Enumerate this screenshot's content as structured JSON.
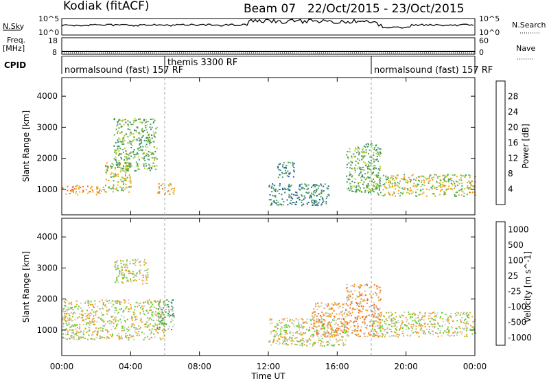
{
  "header": {
    "radar": "Kodiak (fitACF)",
    "beam": "Beam 07",
    "dates": "22/Oct/2015 - 23/Oct/2015"
  },
  "top_panels": {
    "nsky_label": "N.Sky",
    "nsky_ticks": [
      "10^5",
      "10^0"
    ],
    "nsearch_label": "N.Search",
    "nsearch_ticks": [
      "10^5",
      "10^0"
    ],
    "freq_label": "Freq.",
    "freq_unit": "[MHz]",
    "freq_ticks": [
      "18",
      "8"
    ],
    "nave_label": "Nave",
    "nave_ticks": [
      "60",
      "0"
    ],
    "cpid_label": "CPID",
    "cpid_modes": [
      {
        "text": "normalsound (fast) 157 RF",
        "start": 0
      },
      {
        "text": "themis 3300 RF",
        "start": 6
      },
      {
        "text": "normalsound (fast) 157 RF",
        "start": 18
      }
    ]
  },
  "chart_data": [
    {
      "type": "heatmap",
      "name": "Power",
      "xlabel": "Time UT",
      "ylabel": "Slant Range [km]",
      "xlim": [
        0,
        24
      ],
      "ylim": [
        180,
        4600
      ],
      "x_ticks": [
        "00:00",
        "04:00",
        "08:00",
        "12:00",
        "16:00",
        "20:00",
        "00:00"
      ],
      "y_ticks": [
        1000,
        2000,
        3000,
        4000
      ],
      "colorbar_label": "Power [dB]",
      "colorbar_ticks": [
        4,
        8,
        12,
        16,
        20,
        24,
        28
      ],
      "colors": [
        "#1133dd",
        "#2255aa",
        "#3d8a6a",
        "#4aaa55",
        "#b8cc33",
        "#f0a020",
        "#f07020",
        "#e83020"
      ],
      "echo_regions": [
        {
          "t": [
            0.0,
            2.5
          ],
          "range": [
            850,
            1150
          ],
          "power": 20
        },
        {
          "t": [
            2.5,
            4.0
          ],
          "range": [
            900,
            1900
          ],
          "power": 18
        },
        {
          "t": [
            3.0,
            5.5
          ],
          "range": [
            1600,
            3300
          ],
          "power": 14
        },
        {
          "t": [
            5.5,
            6.5
          ],
          "range": [
            850,
            1200
          ],
          "power": 20
        },
        {
          "t": [
            12.5,
            13.5
          ],
          "range": [
            1400,
            1900
          ],
          "power": 10
        },
        {
          "t": [
            12.0,
            15.5
          ],
          "range": [
            500,
            1200
          ],
          "power": 10
        },
        {
          "t": [
            16.5,
            18.5
          ],
          "range": [
            900,
            2500
          ],
          "power": 12
        },
        {
          "t": [
            18.0,
            24.0
          ],
          "range": [
            800,
            1500
          ],
          "power": 18
        }
      ]
    },
    {
      "type": "heatmap",
      "name": "Velocity",
      "xlabel": "Time UT",
      "ylabel": "Slant Range [km]",
      "xlim": [
        0,
        24
      ],
      "ylim": [
        180,
        4600
      ],
      "x_ticks": [
        "00:00",
        "04:00",
        "08:00",
        "12:00",
        "16:00",
        "20:00",
        "00:00"
      ],
      "y_ticks": [
        1000,
        2000,
        3000,
        4000
      ],
      "colorbar_label": "Velocity [m s^-1]",
      "colorbar_ticks": [
        "1000",
        "500",
        "100",
        "25",
        "-25",
        "-100",
        "-500",
        "-1000"
      ],
      "colors": [
        "#1133dd",
        "#2255aa",
        "#3d8a6a",
        "#66cc33",
        "#c8c8c0",
        "#f0a020",
        "#f07020",
        "#e83020"
      ],
      "echo_regions": [
        {
          "t": [
            0.0,
            6.0
          ],
          "range": [
            700,
            2000
          ],
          "velocity": 0
        },
        {
          "t": [
            5.5,
            6.5
          ],
          "range": [
            1000,
            2000
          ],
          "velocity": 100
        },
        {
          "t": [
            3.0,
            5.0
          ],
          "range": [
            2500,
            3300
          ],
          "velocity": 50
        },
        {
          "t": [
            12.0,
            16.5
          ],
          "range": [
            500,
            1400
          ],
          "velocity": 0
        },
        {
          "t": [
            14.5,
            16.5
          ],
          "range": [
            800,
            1900
          ],
          "velocity": -150
        },
        {
          "t": [
            16.5,
            18.5
          ],
          "range": [
            800,
            2500
          ],
          "velocity": -50
        },
        {
          "t": [
            18.0,
            24.0
          ],
          "range": [
            800,
            1600
          ],
          "velocity": 0
        }
      ]
    }
  ]
}
